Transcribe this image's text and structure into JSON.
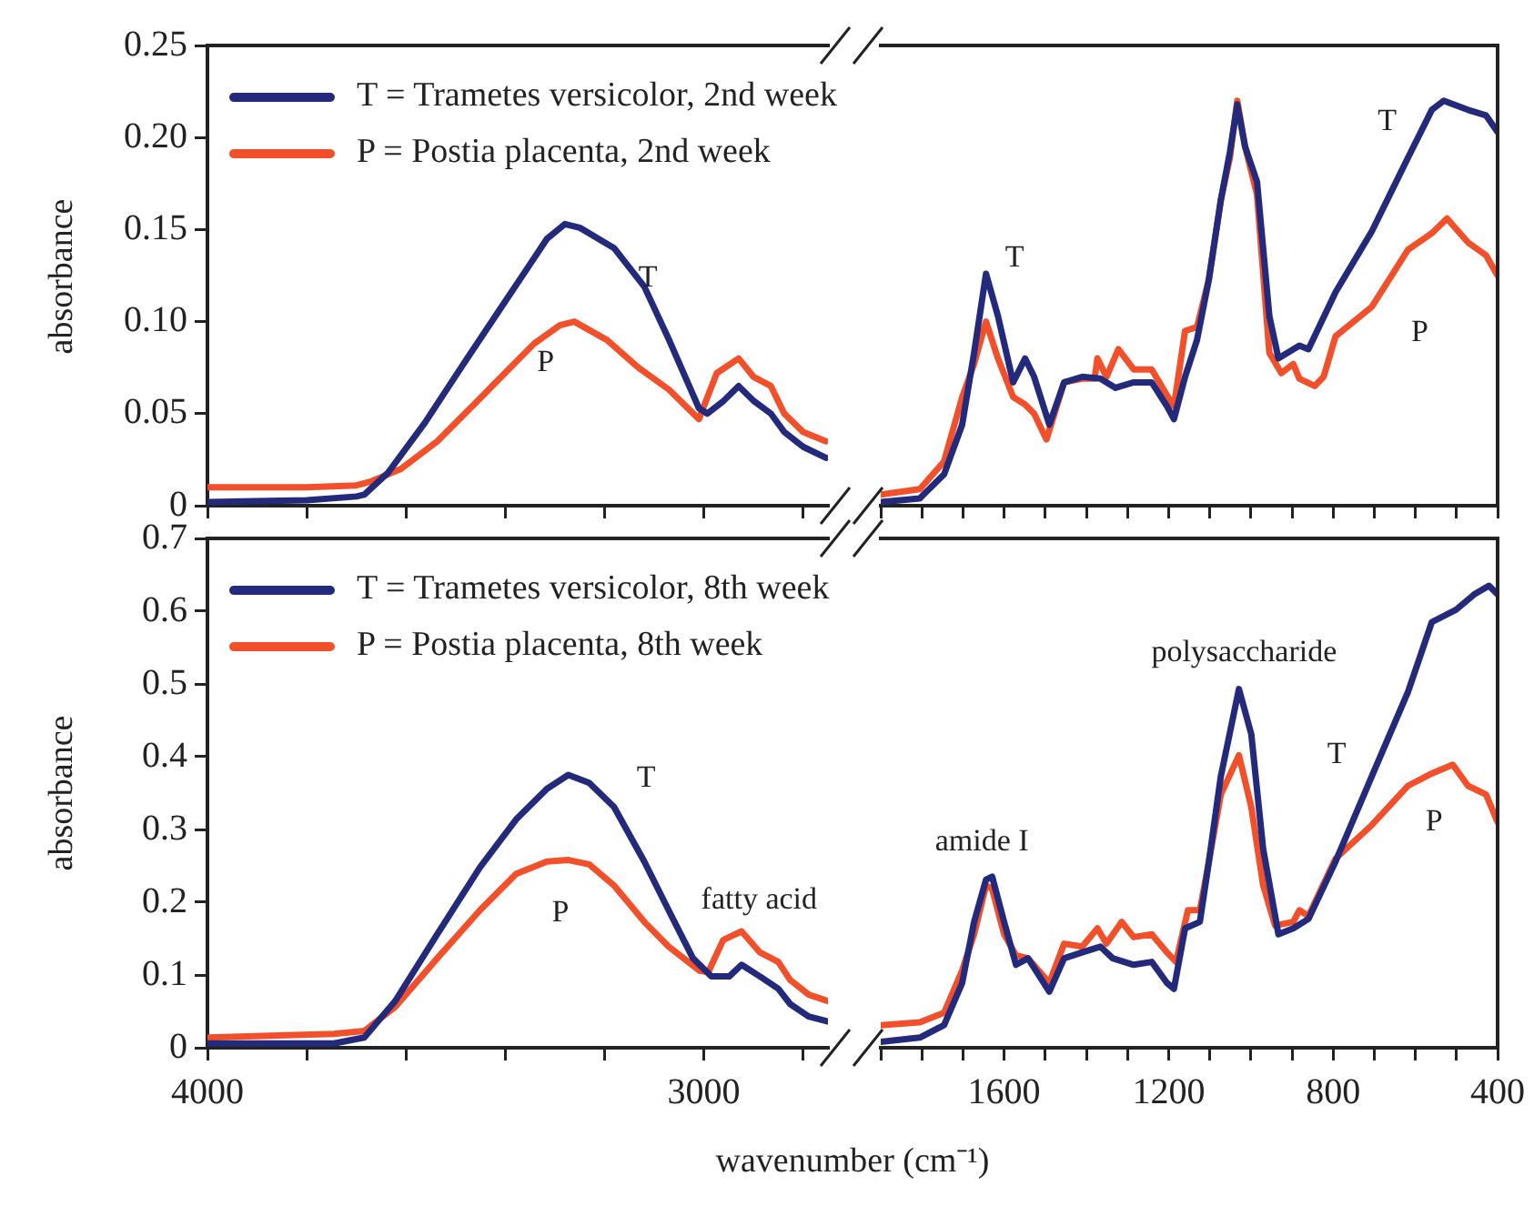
{
  "chart_data": [
    {
      "type": "line",
      "ylabel": "absorbance",
      "xlim": [
        4000,
        2750
      ],
      "ylim": [
        0,
        0.25
      ],
      "xticks": [
        4000,
        {
          "value": 3800,
          "label": null
        },
        {
          "value": 3600,
          "label": null
        },
        {
          "value": 3400,
          "label": null
        },
        {
          "value": 3200,
          "label": null
        },
        3000,
        {
          "value": 2800,
          "label": null
        }
      ],
      "yticks": [
        0,
        0.05,
        {
          "value": 0.1,
          "label": "0.10"
        },
        0.15,
        {
          "value": 0.2,
          "label": "0.20"
        },
        0.25
      ],
      "tick_labels": "y",
      "legend": "top left",
      "marker": "none",
      "line_style": "solid",
      "series": [
        {
          "name": "T = Trametes versicolor, 2nd week",
          "color": "#232a7c",
          "x": [
            4000,
            3800,
            3700,
            3684,
            3636,
            3562,
            3489,
            3415,
            3353,
            3316,
            3280,
            3250,
            3181,
            3120,
            3070,
            3010,
            2993,
            2960,
            2930,
            2900,
            2865,
            2838,
            2800,
            2754
          ],
          "values": [
            0.002,
            0.003,
            0.005,
            0.006,
            0.018,
            0.045,
            0.075,
            0.105,
            0.13,
            0.145,
            0.153,
            0.151,
            0.14,
            0.119,
            0.09,
            0.053,
            0.05,
            0.057,
            0.065,
            0.057,
            0.05,
            0.04,
            0.032,
            0.026
          ]
        },
        {
          "name": "P = Postia placenta, 2nd week",
          "color": "#f2502a",
          "x": [
            4000,
            3800,
            3700,
            3672,
            3610,
            3537,
            3463,
            3390,
            3342,
            3290,
            3261,
            3195,
            3132,
            3070,
            3010,
            2974,
            2930,
            2900,
            2865,
            2838,
            2800,
            2754
          ],
          "values": [
            0.01,
            0.01,
            0.011,
            0.013,
            0.02,
            0.035,
            0.055,
            0.075,
            0.088,
            0.098,
            0.1,
            0.09,
            0.075,
            0.063,
            0.047,
            0.072,
            0.08,
            0.07,
            0.065,
            0.05,
            0.04,
            0.035
          ]
        }
      ],
      "annotations": [
        "T",
        "P"
      ]
    },
    {
      "type": "line",
      "xlim": [
        1900,
        400
      ],
      "ylim": [
        0,
        0.25
      ],
      "xticks": [
        {
          "value": 1900,
          "label": null
        },
        {
          "value": 1800,
          "label": null
        },
        {
          "value": 1700,
          "label": null
        },
        {
          "value": 1600,
          "label": null
        },
        {
          "value": 1500,
          "label": null
        },
        {
          "value": 1400,
          "label": null
        },
        {
          "value": 1300,
          "label": null
        },
        {
          "value": 1200,
          "label": null
        },
        {
          "value": 1100,
          "label": null
        },
        {
          "value": 1000,
          "label": null
        },
        {
          "value": 900,
          "label": null
        },
        {
          "value": 800,
          "label": null
        },
        {
          "value": 700,
          "label": null
        },
        {
          "value": 600,
          "label": null
        },
        {
          "value": 500,
          "label": null
        },
        {
          "value": 400,
          "label": null
        }
      ],
      "tick_labels": false,
      "marker": "none",
      "line_style": "solid",
      "series": [
        {
          "color": "#232a7c",
          "x": [
            1900,
            1805,
            1746,
            1702,
            1673,
            1644,
            1615,
            1578,
            1549,
            1527,
            1490,
            1454,
            1410,
            1366,
            1329,
            1285,
            1241,
            1204,
            1187,
            1160,
            1131,
            1102,
            1073,
            1051,
            1033,
            1014,
            985,
            955,
            933,
            882,
            860,
            794,
            706,
            618,
            560,
            531,
            472,
            428,
            400
          ],
          "values": [
            0.002,
            0.004,
            0.017,
            0.044,
            0.083,
            0.126,
            0.103,
            0.067,
            0.08,
            0.07,
            0.044,
            0.067,
            0.07,
            0.069,
            0.064,
            0.067,
            0.067,
            0.054,
            0.047,
            0.07,
            0.09,
            0.123,
            0.166,
            0.192,
            0.218,
            0.195,
            0.176,
            0.103,
            0.08,
            0.087,
            0.085,
            0.116,
            0.149,
            0.189,
            0.215,
            0.22,
            0.215,
            0.212,
            0.203
          ]
        },
        {
          "color": "#f2502a",
          "x": [
            1900,
            1805,
            1746,
            1702,
            1673,
            1644,
            1615,
            1578,
            1549,
            1527,
            1497,
            1454,
            1410,
            1380,
            1373,
            1351,
            1322,
            1285,
            1241,
            1204,
            1187,
            1160,
            1131,
            1102,
            1073,
            1051,
            1033,
            1014,
            985,
            955,
            926,
            897,
            882,
            845,
            823,
            794,
            706,
            618,
            560,
            523,
            472,
            428,
            400
          ],
          "values": [
            0.006,
            0.009,
            0.024,
            0.059,
            0.077,
            0.1,
            0.08,
            0.059,
            0.055,
            0.05,
            0.036,
            0.067,
            0.069,
            0.069,
            0.08,
            0.07,
            0.085,
            0.074,
            0.074,
            0.06,
            0.054,
            0.095,
            0.097,
            0.123,
            0.166,
            0.189,
            0.22,
            0.195,
            0.169,
            0.083,
            0.072,
            0.077,
            0.069,
            0.065,
            0.07,
            0.092,
            0.108,
            0.139,
            0.148,
            0.156,
            0.143,
            0.136,
            0.125
          ]
        }
      ],
      "annotations": [
        "T",
        "T",
        "P"
      ]
    },
    {
      "type": "line",
      "ylabel": "absorbance",
      "xlabel": "wavenumber (cm⁻¹)",
      "xlim": [
        4000,
        2750
      ],
      "ylim": [
        0,
        0.7
      ],
      "xticks": [
        4000,
        {
          "value": 3800,
          "label": null
        },
        {
          "value": 3600,
          "label": null
        },
        {
          "value": 3400,
          "label": null
        },
        {
          "value": 3200,
          "label": null
        },
        3000,
        {
          "value": 2800,
          "label": null
        }
      ],
      "yticks": [
        0,
        0.1,
        0.2,
        0.3,
        0.4,
        0.5,
        0.6,
        0.7
      ],
      "legend": "top left",
      "marker": "none",
      "line_style": "solid",
      "series": [
        {
          "name": "T = Trametes versicolor, 8th week",
          "color": "#232a7c",
          "x": [
            4000,
            3745,
            3684,
            3622,
            3537,
            3451,
            3378,
            3316,
            3273,
            3231,
            3181,
            3120,
            3071,
            3022,
            2985,
            2949,
            2924,
            2887,
            2850,
            2826,
            2789,
            2750
          ],
          "values": [
            0.006,
            0.006,
            0.014,
            0.064,
            0.156,
            0.248,
            0.314,
            0.356,
            0.375,
            0.364,
            0.331,
            0.256,
            0.189,
            0.123,
            0.098,
            0.098,
            0.114,
            0.098,
            0.081,
            0.06,
            0.043,
            0.036
          ]
        },
        {
          "name": "P = Postia placenta, 8th week",
          "color": "#f2502a",
          "x": [
            4000,
            3745,
            3684,
            3622,
            3537,
            3451,
            3378,
            3316,
            3273,
            3231,
            3181,
            3120,
            3071,
            3009,
            2991,
            2961,
            2949,
            2924,
            2887,
            2850,
            2826,
            2789,
            2750
          ],
          "values": [
            0.014,
            0.019,
            0.023,
            0.056,
            0.123,
            0.189,
            0.239,
            0.256,
            0.258,
            0.252,
            0.223,
            0.173,
            0.139,
            0.106,
            0.104,
            0.148,
            0.152,
            0.16,
            0.131,
            0.118,
            0.093,
            0.073,
            0.064
          ]
        }
      ],
      "annotations": [
        "T",
        "P",
        "fatty acid"
      ]
    },
    {
      "type": "line",
      "xlim": [
        1900,
        400
      ],
      "ylim": [
        0,
        0.7
      ],
      "xticks": [
        {
          "value": 1900,
          "label": null
        },
        {
          "value": 1800,
          "label": null
        },
        {
          "value": 1700,
          "label": null
        },
        1600,
        {
          "value": 1500,
          "label": null
        },
        {
          "value": 1400,
          "label": null
        },
        {
          "value": 1300,
          "label": null
        },
        1200,
        {
          "value": 1100,
          "label": null
        },
        {
          "value": 1000,
          "label": null
        },
        {
          "value": 900,
          "label": null
        },
        800,
        {
          "value": 700,
          "label": null
        },
        {
          "value": 600,
          "label": null
        },
        {
          "value": 500,
          "label": null
        },
        400
      ],
      "tick_labels": "x",
      "marker": "none",
      "line_style": "solid",
      "series": [
        {
          "color": "#232a7c",
          "x": [
            1900,
            1805,
            1746,
            1702,
            1673,
            1644,
            1629,
            1600,
            1571,
            1542,
            1490,
            1454,
            1410,
            1366,
            1336,
            1285,
            1241,
            1204,
            1187,
            1160,
            1124,
            1102,
            1073,
            1029,
            999,
            970,
            933,
            897,
            860,
            794,
            706,
            618,
            560,
            501,
            457,
            421,
            400
          ],
          "values": [
            0.008,
            0.014,
            0.031,
            0.089,
            0.173,
            0.231,
            0.235,
            0.173,
            0.114,
            0.123,
            0.077,
            0.123,
            0.131,
            0.139,
            0.123,
            0.114,
            0.118,
            0.089,
            0.081,
            0.164,
            0.173,
            0.256,
            0.373,
            0.493,
            0.431,
            0.273,
            0.156,
            0.164,
            0.177,
            0.256,
            0.373,
            0.489,
            0.585,
            0.602,
            0.623,
            0.635,
            0.623
          ]
        },
        {
          "color": "#f2502a",
          "x": [
            1900,
            1805,
            1746,
            1702,
            1673,
            1644,
            1629,
            1600,
            1571,
            1542,
            1490,
            1454,
            1410,
            1373,
            1351,
            1314,
            1285,
            1241,
            1204,
            1182,
            1153,
            1124,
            1102,
            1073,
            1029,
            999,
            970,
            941,
            897,
            882,
            860,
            794,
            706,
            618,
            560,
            509,
            472,
            428,
            400
          ],
          "values": [
            0.031,
            0.035,
            0.048,
            0.106,
            0.156,
            0.223,
            0.218,
            0.156,
            0.127,
            0.123,
            0.089,
            0.143,
            0.139,
            0.164,
            0.143,
            0.173,
            0.152,
            0.156,
            0.131,
            0.118,
            0.189,
            0.189,
            0.256,
            0.348,
            0.402,
            0.331,
            0.223,
            0.168,
            0.173,
            0.189,
            0.181,
            0.26,
            0.306,
            0.36,
            0.377,
            0.389,
            0.36,
            0.348,
            0.31
          ]
        }
      ],
      "annotations": [
        "amide I",
        "polysaccharide",
        "T",
        "P"
      ]
    }
  ]
}
